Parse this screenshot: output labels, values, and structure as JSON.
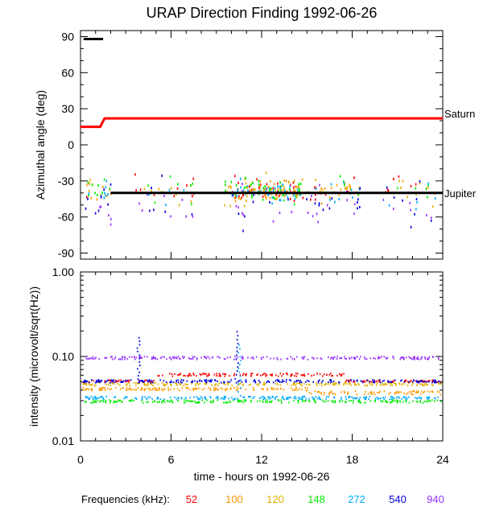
{
  "chart_data": {
    "type": "scatter",
    "title": "URAP Direction Finding  1992-06-26",
    "xlabel": "time - hours on 1992-06-26",
    "xlim": [
      0,
      24
    ],
    "x_ticks": [
      "0",
      "6",
      "12",
      "18",
      "24"
    ],
    "top_panel": {
      "ylabel": "Azimuthal angle (deg)",
      "ylim": [
        -95,
        95
      ],
      "y_ticks": [
        "90",
        "60",
        "30",
        "0",
        "-30",
        "-60",
        "-90"
      ],
      "annotations": [
        {
          "label": "Saturn",
          "y": 22
        },
        {
          "label": "Jupiter",
          "y": -40
        }
      ],
      "lines": [
        {
          "name": "Saturn",
          "color": "#ff0000",
          "points": [
            [
              0,
              15
            ],
            [
              1.3,
              15
            ],
            [
              1.6,
              22
            ],
            [
              24,
              22
            ]
          ]
        },
        {
          "name": "Jupiter",
          "color": "#000000",
          "points": [
            [
              2,
              -40
            ],
            [
              24,
              -40
            ]
          ]
        },
        {
          "name": "top-marker",
          "color": "#000000",
          "points": [
            [
              0.2,
              88
            ],
            [
              1.5,
              88
            ]
          ]
        }
      ]
    },
    "bottom_panel": {
      "ylabel": "intensity (microvolt/sqrt(Hz))",
      "scale": "log",
      "ylim": [
        0.01,
        1.0
      ],
      "y_ticks": [
        "1.00",
        "0.10",
        "0.01"
      ]
    },
    "legend_label": "Frequencies (kHz):",
    "series": [
      {
        "name": "52",
        "color": "#ff0000",
        "intensity": 0.062,
        "azimuth_mean": -36
      },
      {
        "name": "100",
        "color": "#ff9900",
        "intensity": 0.042,
        "azimuth_mean": -38
      },
      {
        "name": "120",
        "color": "#e0b000",
        "intensity": 0.048,
        "azimuth_mean": -37
      },
      {
        "name": "148",
        "color": "#00ee00",
        "intensity": 0.03,
        "azimuth_mean": -36
      },
      {
        "name": "272",
        "color": "#00aaff",
        "intensity": 0.033,
        "azimuth_mean": -38
      },
      {
        "name": "540",
        "color": "#0000dd",
        "intensity": 0.052,
        "azimuth_mean": -48
      },
      {
        "name": "940",
        "color": "#9933ff",
        "intensity": 0.098,
        "azimuth_mean": -52
      }
    ]
  }
}
